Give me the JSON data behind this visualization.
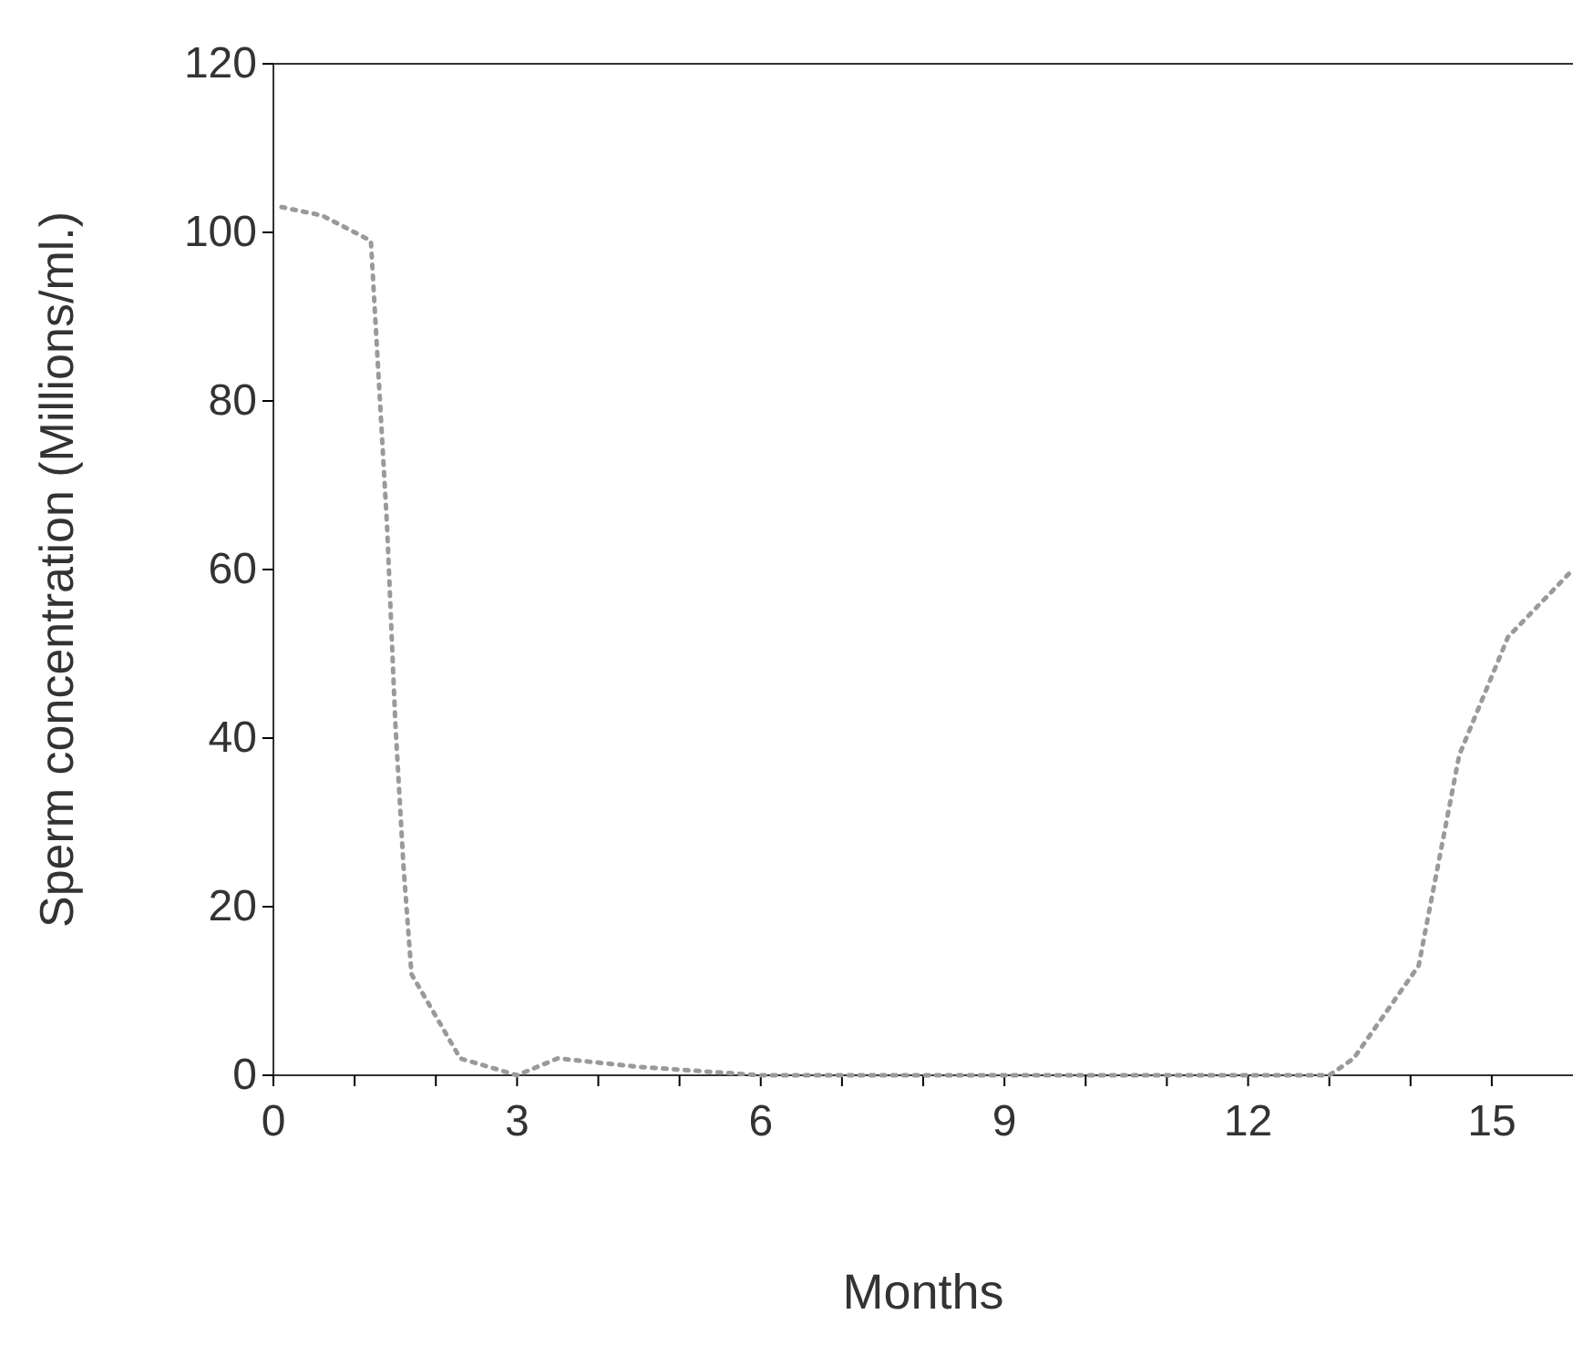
{
  "chart_data": {
    "type": "line",
    "xlabel": "Months",
    "ylabel": "Sperm concentration (Millions/ml.)",
    "x": [
      0.1,
      0.6,
      1.2,
      1.3,
      1.4,
      1.5,
      1.6,
      1.7,
      2.3,
      3,
      3.5,
      4.5,
      6,
      9,
      12,
      13,
      13.3,
      14.1,
      14.6,
      15.2,
      16
    ],
    "series": [
      {
        "color": "#9a9a9a",
        "values": [
          103,
          102,
          99,
          82,
          65,
          42,
          25,
          12,
          2,
          0,
          2,
          1,
          0,
          0,
          0,
          0,
          2,
          13,
          38,
          52,
          60
        ]
      }
    ],
    "xlim": [
      0,
      16
    ],
    "ylim": [
      0,
      120
    ],
    "xticks": [
      0,
      {
        "value": 1,
        "label": null
      },
      {
        "value": 2,
        "label": null
      },
      3,
      {
        "value": 4,
        "label": null
      },
      {
        "value": 5,
        "label": null
      },
      6,
      {
        "value": 7,
        "label": null
      },
      {
        "value": 8,
        "label": null
      },
      9,
      {
        "value": 10,
        "label": null
      },
      {
        "value": 11,
        "label": null
      },
      12,
      {
        "value": 13,
        "label": null
      },
      {
        "value": 14,
        "label": null
      },
      15
    ],
    "yticks": [
      0,
      20,
      40,
      60,
      80,
      100,
      120
    ],
    "grid": false,
    "marker": "none",
    "line_style": "dotted"
  }
}
